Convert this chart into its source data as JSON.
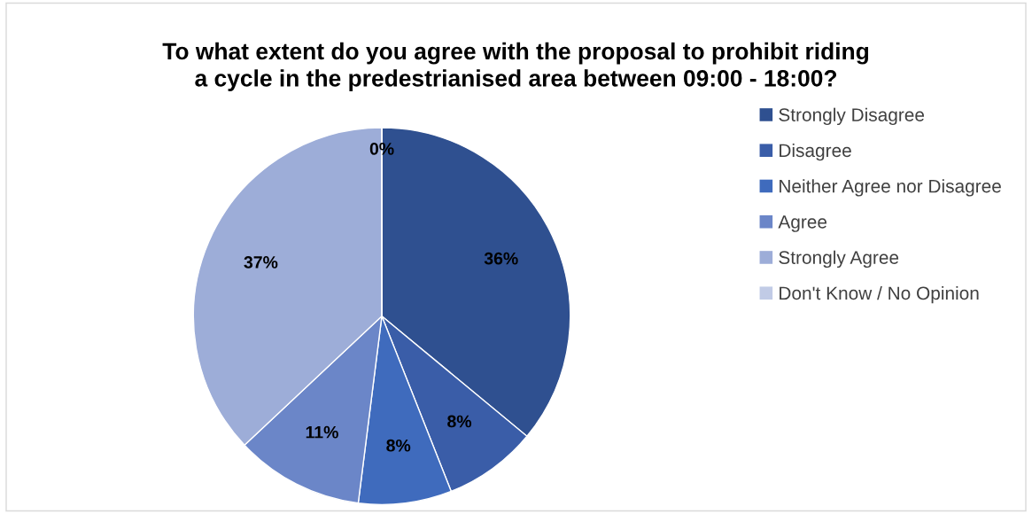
{
  "chart_data": {
    "type": "pie",
    "title": "To what extent do you agree with the proposal to prohibit riding\na cycle in the predestrianised area between 09:00 - 18:00?",
    "categories": [
      "Strongly Disagree",
      "Disagree",
      "Neither Agree nor Disagree",
      "Agree",
      "Strongly Agree",
      "Don't Know / No Opinion"
    ],
    "values": [
      36,
      8,
      8,
      11,
      37,
      0
    ],
    "colors": [
      "#2f5090",
      "#3a5da8",
      "#3f6bbd",
      "#6b86c8",
      "#9dadd8",
      "#c1cbe6"
    ],
    "value_labels": [
      "36%",
      "8%",
      "8%",
      "11%",
      "37%",
      "0%"
    ],
    "legend": "right"
  }
}
